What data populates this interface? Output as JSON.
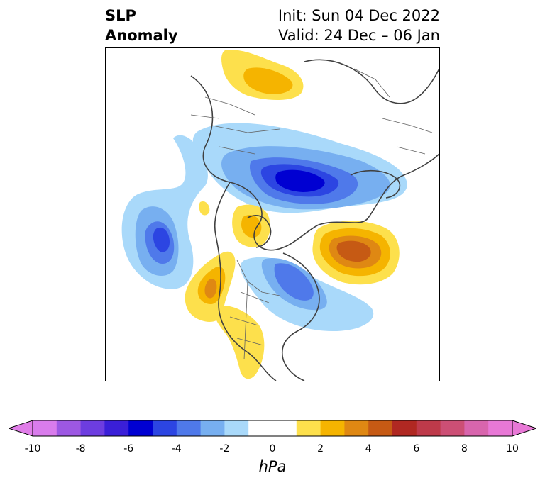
{
  "title": {
    "left_line1": "SLP",
    "left_line2": "Anomaly",
    "right_line1": "Init: Sun 04 Dec 2022",
    "right_line2": "Valid: 24 Dec – 06 Jan"
  },
  "map": {
    "projection": "north-polar-stereographic",
    "variable": "sea-level pressure anomaly",
    "anomaly_centers": [
      {
        "sign": "negative",
        "max_abs_hPa": 5.5,
        "region": "northern Europe / Scandinavia-Russia"
      },
      {
        "sign": "negative",
        "max_abs_hPa": 4.5,
        "region": "North Atlantic"
      },
      {
        "sign": "negative",
        "max_abs_hPa": 4.0,
        "region": "Hudson Bay / eastern Canada"
      },
      {
        "sign": "positive",
        "max_abs_hPa": 4.5,
        "region": "Bering Sea / Alaska-Siberia"
      },
      {
        "sign": "positive",
        "max_abs_hPa": 4.0,
        "region": "western Canada / US West Coast"
      },
      {
        "sign": "positive",
        "max_abs_hPa": 3.0,
        "region": "Greenland"
      },
      {
        "sign": "positive",
        "max_abs_hPa": 3.0,
        "region": "North Africa / Sahara"
      }
    ]
  },
  "colorbar": {
    "unit": "hPa",
    "ticks": [
      "-10",
      "-8",
      "-6",
      "-4",
      "-2",
      "0",
      "2",
      "4",
      "6",
      "8",
      "10"
    ],
    "colors": [
      "#d97cec",
      "#9d58e3",
      "#6d3de0",
      "#3a1fd8",
      "#0000d2",
      "#2c45e2",
      "#4f79ea",
      "#77aff0",
      "#a9d9fa",
      "#ffffff",
      "#ffffff",
      "#fde04c",
      "#f5b400",
      "#df8813",
      "#c65a14",
      "#b02822",
      "#be3a4a",
      "#cc4f75",
      "#d865ad",
      "#e878d6"
    ],
    "extend_colors": {
      "low": "#e07de8",
      "high": "#e878d6"
    }
  }
}
